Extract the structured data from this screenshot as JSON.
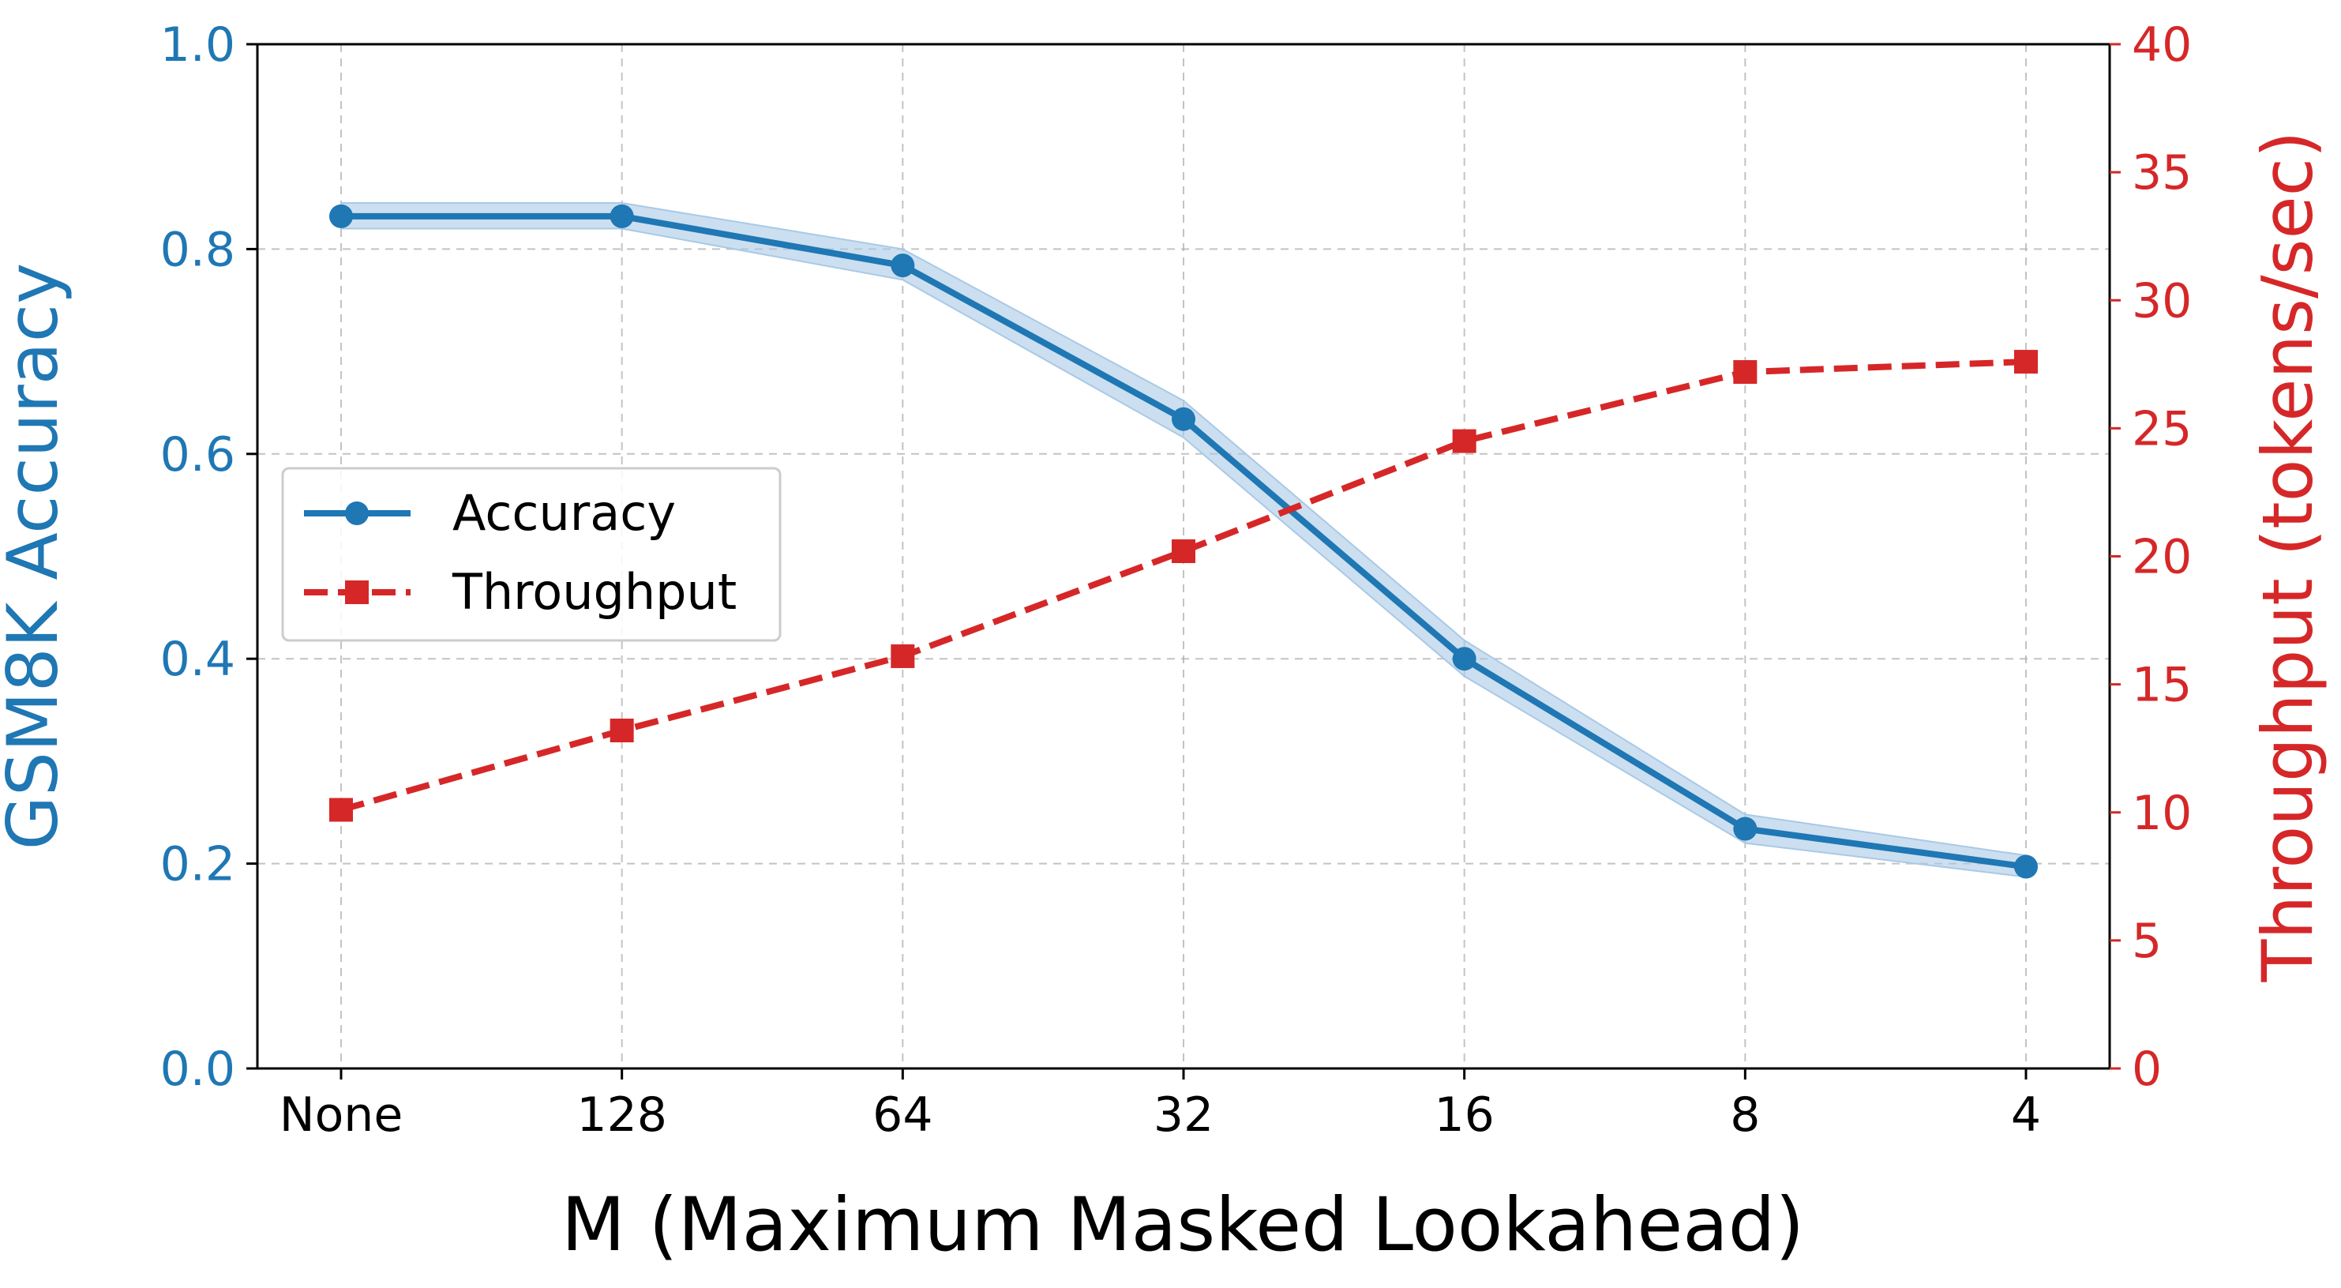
{
  "chart_data": {
    "type": "line",
    "categories": [
      "None",
      "128",
      "64",
      "32",
      "16",
      "8",
      "4"
    ],
    "xlabel": "M (Maximum Masked Lookahead)",
    "y_left": {
      "label": "GSM8K Accuracy",
      "ylim": [
        0.0,
        1.0
      ],
      "ticks": [
        "0.0",
        "0.2",
        "0.4",
        "0.6",
        "0.8",
        "1.0"
      ],
      "color": "#1f77b4"
    },
    "y_right": {
      "label": "Throughput (tokens/sec)",
      "ylim": [
        0,
        40
      ],
      "ticks": [
        "0",
        "5",
        "10",
        "15",
        "20",
        "25",
        "30",
        "35",
        "40"
      ],
      "color": "#d62728"
    },
    "series": [
      {
        "name": "Accuracy",
        "axis": "left",
        "values": [
          0.832,
          0.832,
          0.784,
          0.634,
          0.4,
          0.234,
          0.197
        ],
        "band_lower": [
          0.82,
          0.82,
          0.77,
          0.616,
          0.383,
          0.22,
          0.187
        ],
        "band_upper": [
          0.845,
          0.845,
          0.8,
          0.652,
          0.418,
          0.248,
          0.208
        ],
        "color": "#1f77b4",
        "band_color": "#a9c9e6",
        "marker": "circle",
        "linestyle": "solid"
      },
      {
        "name": "Throughput",
        "axis": "right",
        "values": [
          10.1,
          13.2,
          16.1,
          20.2,
          24.5,
          27.2,
          27.6
        ],
        "color": "#d62728",
        "marker": "square",
        "linestyle": "dashed"
      }
    ],
    "grid": true,
    "legend": "center-left"
  }
}
